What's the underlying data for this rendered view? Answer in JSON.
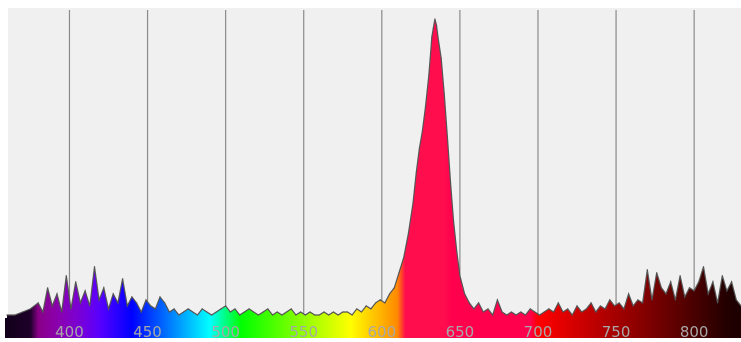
{
  "chart_data": {
    "type": "area",
    "title": "",
    "xlabel": "",
    "ylabel": "",
    "xlim": [
      360,
      830
    ],
    "ylim": [
      0,
      1
    ],
    "x_ticks": [
      400,
      450,
      500,
      550,
      600,
      650,
      700,
      750,
      800
    ],
    "x_tick_labels": [
      "400",
      "450",
      "500",
      "550",
      "600",
      "650",
      "700",
      "750",
      "800"
    ],
    "grid": "vertical",
    "fill": "wavelength-spectrum-gradient",
    "series": [
      {
        "x": [
          360,
          365,
          370,
          375,
          380,
          383,
          386,
          389,
          392,
          395,
          398,
          401,
          404,
          407,
          410,
          413,
          416,
          419,
          422,
          425,
          428,
          431,
          434,
          437,
          440,
          443,
          446,
          449,
          452,
          455,
          458,
          461,
          464,
          467,
          470,
          473,
          476,
          479,
          482,
          485,
          488,
          491,
          494,
          497,
          500,
          503,
          506,
          509,
          512,
          515,
          518,
          521,
          524,
          527,
          530,
          533,
          536,
          539,
          542,
          545,
          548,
          551,
          554,
          557,
          560,
          563,
          566,
          569,
          572,
          575,
          578,
          581,
          584,
          587,
          590,
          593,
          596,
          599,
          602,
          605,
          608,
          611,
          614,
          617,
          620,
          622,
          624,
          626,
          628,
          630,
          631,
          632,
          633,
          634,
          635,
          636,
          638,
          640,
          642,
          644,
          646,
          648,
          650,
          653,
          656,
          659,
          662,
          665,
          668,
          671,
          674,
          677,
          680,
          683,
          686,
          689,
          692,
          695,
          698,
          701,
          704,
          707,
          710,
          713,
          716,
          719,
          722,
          725,
          728,
          731,
          734,
          737,
          740,
          743,
          746,
          749,
          752,
          755,
          758,
          761,
          764,
          767,
          770,
          773,
          776,
          779,
          782,
          785,
          788,
          791,
          794,
          797,
          800,
          803,
          806,
          809,
          812,
          815,
          818,
          821,
          824,
          827,
          830
        ],
        "y": [
          0.01,
          0.01,
          0.02,
          0.03,
          0.05,
          0.02,
          0.1,
          0.04,
          0.08,
          0.02,
          0.14,
          0.03,
          0.12,
          0.05,
          0.09,
          0.04,
          0.17,
          0.06,
          0.1,
          0.03,
          0.08,
          0.05,
          0.13,
          0.04,
          0.07,
          0.05,
          0.02,
          0.06,
          0.04,
          0.03,
          0.07,
          0.05,
          0.02,
          0.03,
          0.01,
          0.02,
          0.03,
          0.02,
          0.01,
          0.03,
          0.02,
          0.01,
          0.02,
          0.03,
          0.04,
          0.02,
          0.03,
          0.01,
          0.02,
          0.03,
          0.02,
          0.01,
          0.02,
          0.03,
          0.01,
          0.02,
          0.01,
          0.02,
          0.03,
          0.01,
          0.02,
          0.01,
          0.02,
          0.01,
          0.01,
          0.02,
          0.01,
          0.02,
          0.01,
          0.02,
          0.02,
          0.01,
          0.03,
          0.02,
          0.04,
          0.03,
          0.05,
          0.06,
          0.05,
          0.08,
          0.1,
          0.15,
          0.2,
          0.28,
          0.38,
          0.48,
          0.56,
          0.62,
          0.7,
          0.8,
          0.86,
          0.93,
          0.96,
          0.99,
          0.97,
          0.93,
          0.86,
          0.74,
          0.6,
          0.45,
          0.32,
          0.22,
          0.14,
          0.08,
          0.05,
          0.03,
          0.05,
          0.02,
          0.03,
          0.01,
          0.06,
          0.02,
          0.01,
          0.02,
          0.01,
          0.02,
          0.01,
          0.03,
          0.02,
          0.01,
          0.02,
          0.03,
          0.02,
          0.05,
          0.02,
          0.03,
          0.01,
          0.04,
          0.02,
          0.03,
          0.05,
          0.02,
          0.04,
          0.03,
          0.06,
          0.04,
          0.05,
          0.03,
          0.08,
          0.04,
          0.06,
          0.05,
          0.16,
          0.06,
          0.15,
          0.1,
          0.08,
          0.12,
          0.06,
          0.14,
          0.07,
          0.1,
          0.09,
          0.12,
          0.17,
          0.08,
          0.12,
          0.05,
          0.14,
          0.09,
          0.12,
          0.06,
          0.04
        ]
      }
    ]
  }
}
